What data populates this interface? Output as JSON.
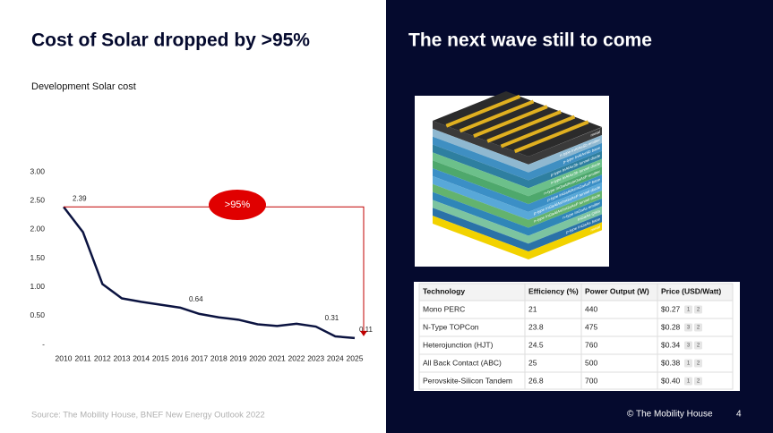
{
  "left_title": "Cost of Solar dropped by >95%",
  "right_title": "The next wave still to come",
  "source": "Source: The Mobility House, BNEF New Energy Outlook 2022",
  "footer": {
    "company": "© The Mobility House",
    "page": "4"
  },
  "chart_data": {
    "type": "line",
    "title": "Development Solar cost",
    "categories": [
      "2010",
      "2011",
      "2012",
      "2013",
      "2014",
      "2015",
      "2016",
      "2017",
      "2018",
      "2019",
      "2020",
      "2021",
      "2022",
      "2023",
      "2024",
      "2025"
    ],
    "series": [
      {
        "name": "Solar cost",
        "color": "#0b1340",
        "values": [
          2.39,
          1.95,
          1.05,
          0.8,
          0.74,
          0.69,
          0.64,
          0.53,
          0.47,
          0.43,
          0.35,
          0.32,
          0.36,
          0.31,
          0.14,
          0.11
        ],
        "value_labels": [
          "2.39",
          null,
          null,
          null,
          null,
          null,
          "0.64",
          null,
          null,
          null,
          null,
          null,
          null,
          "0.31",
          null,
          "0.11"
        ]
      }
    ],
    "ylim": [
      0,
      3
    ],
    "yticks": [
      {
        "value": 0,
        "label": "-"
      },
      {
        "value": 0.5,
        "label": "0.50"
      },
      {
        "value": 1,
        "label": "1.00"
      },
      {
        "value": 1.5,
        "label": "1.50"
      },
      {
        "value": 2,
        "label": "2.00"
      },
      {
        "value": 2.5,
        "label": "2.50"
      },
      {
        "value": 3,
        "label": "3.00"
      }
    ],
    "grid": false,
    "annotation": ">95%"
  },
  "image": {
    "layers": [
      "metal",
      "n-type InAlAsSb emitter",
      "p-type InAlAsSb base",
      "p-type InAlAsSb tunnel diode",
      "n-type InAlAsSb tunnel diode",
      "n-type InGaAlAsInGaAsP emitter",
      "p-type InGaAlAsInGaAsP base",
      "p-type InGaAlAs/InGaAsP tunnel diode",
      "n-type InGaAlAs/InGaAsP tunnel diode",
      "n-type InGaAs emitter",
      "InGaAs QWs",
      "p-type InGaAs base",
      "metal"
    ]
  },
  "table": {
    "header": [
      "Technology",
      "Efficiency (%)",
      "Power Output (W)",
      "Price (USD/Watt)"
    ],
    "rows": [
      [
        "Mono PERC",
        "21",
        "440",
        "$0.27"
      ],
      [
        "N-Type TOPCon",
        "23.8",
        "475",
        "$0.28"
      ],
      [
        "Heterojunction (HJT)",
        "24.5",
        "760",
        "$0.34"
      ],
      [
        "All Back Contact (ABC)",
        "25",
        "500",
        "$0.38"
      ],
      [
        "Perovskite-Silicon Tandem",
        "26.8",
        "700",
        "$0.40"
      ]
    ],
    "refs": [
      [
        "1",
        "2"
      ],
      [
        "3",
        "2"
      ],
      [
        "3",
        "2"
      ],
      [
        "1",
        "2"
      ],
      [
        "1",
        "2"
      ]
    ]
  }
}
